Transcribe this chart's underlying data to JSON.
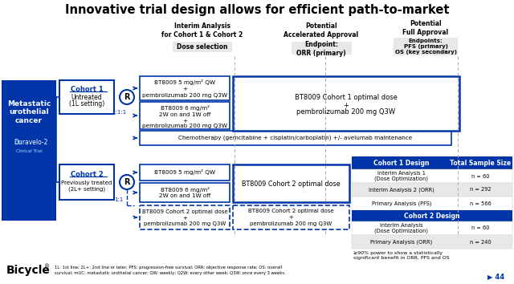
{
  "title": "Innovative trial design allows for efficient path-to-market",
  "bg_color": "#ffffff",
  "blue": "#0035A9",
  "white": "#ffffff",
  "gray_light": "#E8E8E8",
  "black": "#000000",
  "c1_rows": [
    [
      "Interim Analysis 1\n(Dose Optimization)",
      "n = 60"
    ],
    [
      "Interim Analysis 2 (ORR)",
      "n = 292"
    ],
    [
      "Primary Analysis (PFS)",
      "n = 566"
    ]
  ],
  "c2_rows": [
    [
      "Interim Analysis\n(Dose Optimization)",
      "n = 60"
    ],
    [
      "Primary Analysis (ORR)",
      "n = 240"
    ]
  ],
  "c2_footer": "≥90% power to show a statistically\nsignificant benefit in ORR, PFS and OS",
  "footnote": "1L: 1st line; 2L+: 2nd line or later; PFS: progression-free survival; ORR: objective response rate; OS: overall\nsurvival; mUC: metastatic urothelial cancer; QW: weekly; Q2W: every other week; Q3W: once every 3 weeks.",
  "page_num": "44"
}
